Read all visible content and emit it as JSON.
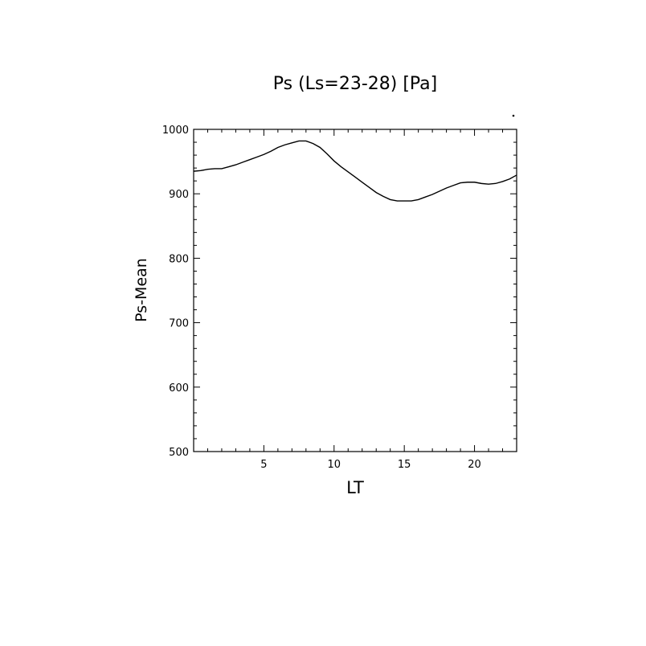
{
  "chart_data": {
    "type": "line",
    "title": "Ps (Ls=23-28) [Pa]",
    "xlabel": "LT",
    "ylabel": "Ps-Mean",
    "xlim": [
      0,
      23
    ],
    "ylim": [
      500,
      1000
    ],
    "x_ticks": [
      5,
      10,
      15,
      20
    ],
    "x_tick_labels": [
      "5",
      "10",
      "15",
      "20"
    ],
    "y_ticks": [
      500,
      600,
      700,
      800,
      900,
      1000
    ],
    "y_tick_labels": [
      "500",
      "600",
      "700",
      "800",
      "900",
      "1000"
    ],
    "grid": false,
    "series": [
      {
        "x": [
          0,
          0.5,
          1,
          1.5,
          2,
          2.5,
          3,
          3.5,
          4,
          4.5,
          5,
          5.5,
          6,
          6.5,
          7,
          7.5,
          8,
          8.5,
          9,
          9.5,
          10,
          10.5,
          11,
          11.5,
          12,
          12.5,
          13,
          13.5,
          14,
          14.5,
          15,
          15.5,
          16,
          16.5,
          17,
          17.5,
          18,
          18.5,
          19,
          19.5,
          20,
          20.5,
          21,
          21.5,
          22,
          22.5,
          23
        ],
        "y": [
          935,
          936,
          938,
          939,
          939,
          942,
          945,
          949,
          953,
          957,
          961,
          966,
          972,
          976,
          979,
          982,
          982,
          978,
          972,
          962,
          951,
          942,
          934,
          926,
          918,
          910,
          902,
          896,
          891,
          889,
          889,
          889,
          891,
          895,
          899,
          904,
          909,
          913,
          917,
          918,
          918,
          916,
          915,
          916,
          919,
          923,
          929
        ]
      }
    ]
  }
}
